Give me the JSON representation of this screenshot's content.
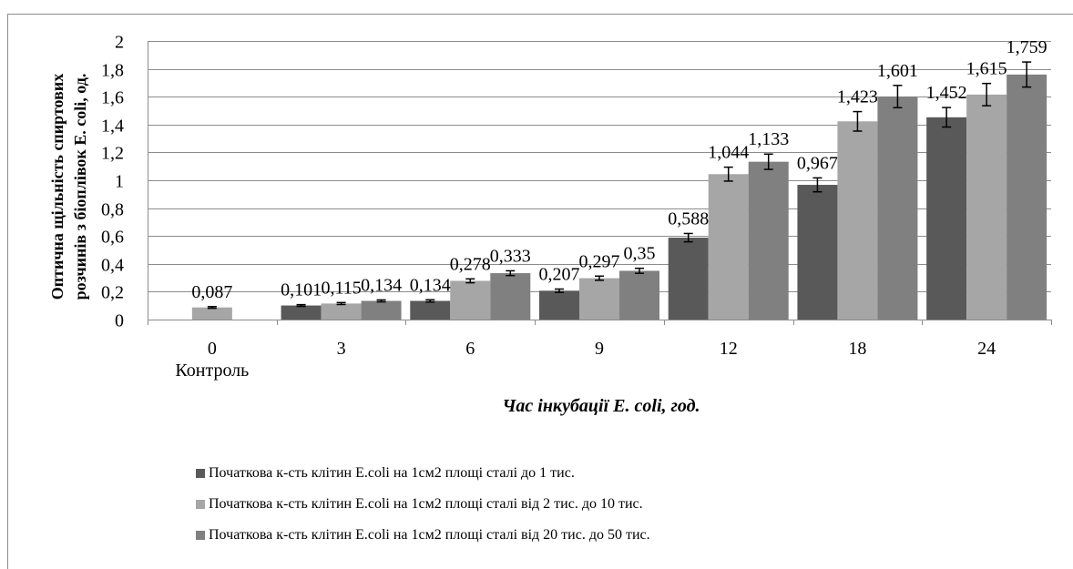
{
  "chart_data": {
    "type": "bar",
    "title": "",
    "xlabel": "Час інкубації E. coli, год.",
    "ylabel_lines": [
      "Оптична щільність спиртових",
      "розчинів з біоплівок E. coli, од."
    ],
    "x_tick_lines": [
      [
        "0",
        "Контроль"
      ],
      [
        "3"
      ],
      [
        "6"
      ],
      [
        "9"
      ],
      [
        "12"
      ],
      [
        "18"
      ],
      [
        "24"
      ]
    ],
    "categories": [
      "0 Контроль",
      "3",
      "6",
      "9",
      "12",
      "18",
      "24"
    ],
    "ylim": [
      0,
      2
    ],
    "yticks": [
      "0",
      "0,2",
      "0,4",
      "0,6",
      "0,8",
      "1",
      "1,2",
      "1,4",
      "1,6",
      "1,8",
      "2"
    ],
    "ytick_values": [
      0,
      0.2,
      0.4,
      0.6,
      0.8,
      1.0,
      1.2,
      1.4,
      1.6,
      1.8,
      2.0
    ],
    "grid": true,
    "legend_position": "bottom",
    "series": [
      {
        "name": "Початкова к-сть клітин E.coli на 1см2 площі сталі до 1 тис.",
        "color": "#595959",
        "values": [
          null,
          0.101,
          0.134,
          0.207,
          0.588,
          0.967,
          1.452
        ],
        "labels": [
          null,
          "0,101",
          "0,134",
          "0,207",
          "0,588",
          "0,967",
          "1,452"
        ],
        "errors": [
          null,
          0.006,
          0.008,
          0.012,
          0.03,
          0.05,
          0.07
        ]
      },
      {
        "name": "Початкова к-сть клітин E.coli на 1см2 площі сталі від 2 тис. до 10 тис.",
        "color": "#a6a6a6",
        "values": [
          0.087,
          0.115,
          0.278,
          0.297,
          1.044,
          1.423,
          1.615
        ],
        "labels": [
          "0,087",
          "0,115",
          "0,278",
          "0,297",
          "1,044",
          "1,423",
          "1,615"
        ],
        "errors": [
          0.006,
          0.007,
          0.014,
          0.015,
          0.05,
          0.07,
          0.08
        ]
      },
      {
        "name": "Початкова к-сть клітин E.coli на 1см2 площі сталі від 20 тис. до 50 тис.",
        "color": "#808080",
        "values": [
          null,
          0.134,
          0.333,
          0.35,
          1.133,
          1.601,
          1.759
        ],
        "labels": [
          null,
          "0,134",
          "0,333",
          "0,35",
          "1,133",
          "1,601",
          "1,759"
        ],
        "errors": [
          null,
          0.007,
          0.017,
          0.018,
          0.055,
          0.08,
          0.09
        ]
      }
    ]
  }
}
